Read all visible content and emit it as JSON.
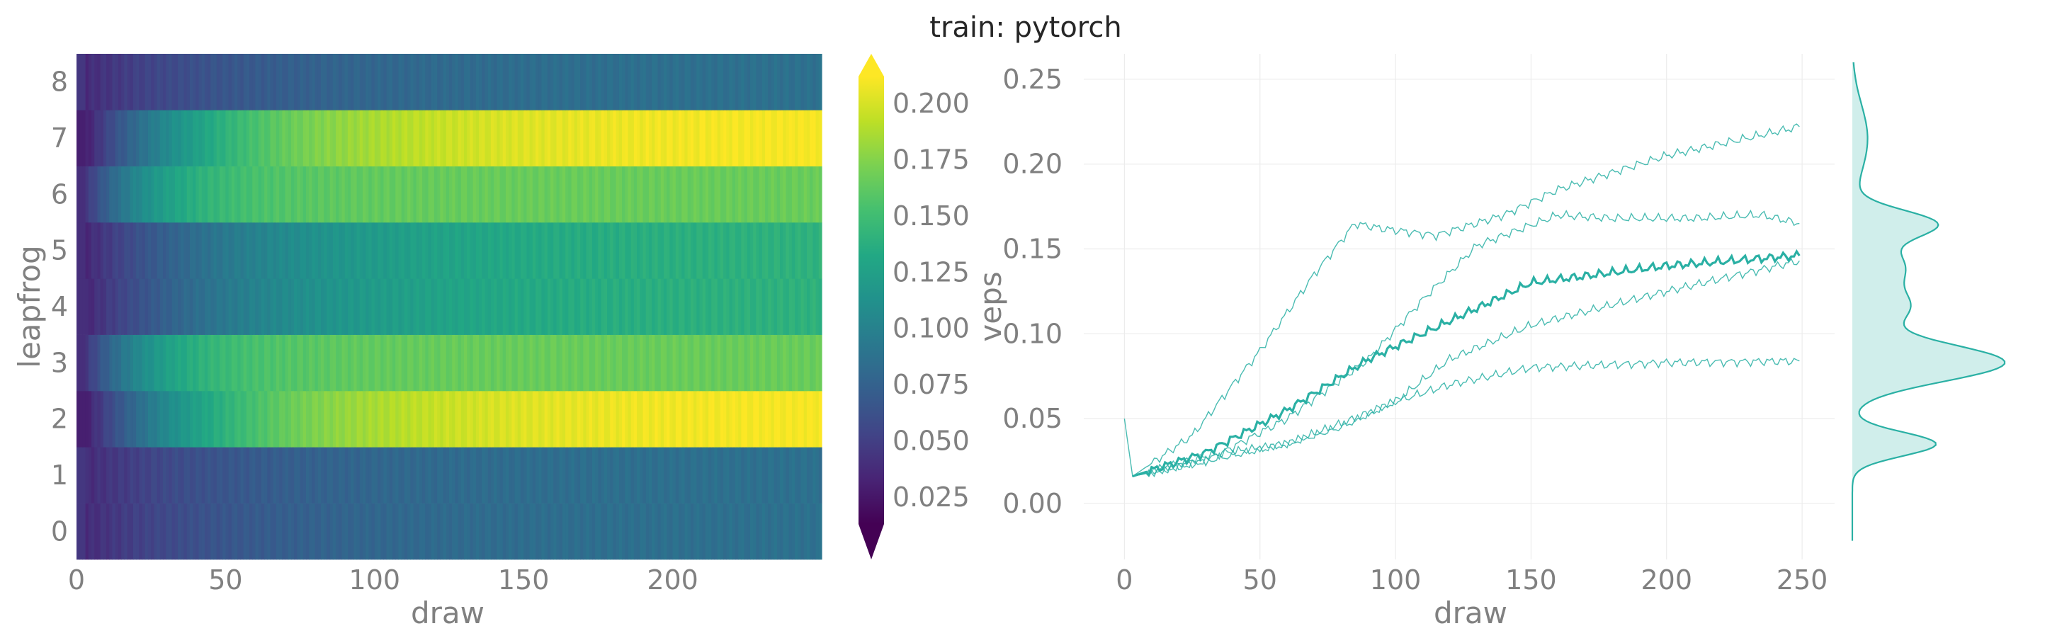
{
  "figure": {
    "title": "train: pytorch"
  },
  "chart_data": [
    {
      "type": "heatmap",
      "xlabel": "draw",
      "ylabel": "leapfrog",
      "colorbar_label": "veps",
      "colormap": "viridis",
      "xlim": [
        0,
        249
      ],
      "x_ticks": [
        "0",
        "50",
        "100",
        "150",
        "200"
      ],
      "y_ticks": [
        "0",
        "1",
        "2",
        "3",
        "4",
        "5",
        "6",
        "7",
        "8"
      ],
      "clim": [
        0.013,
        0.212
      ],
      "colorbar_ticks": [
        "0.025",
        "0.050",
        "0.075",
        "0.100",
        "0.125",
        "0.150",
        "0.175",
        "0.200"
      ],
      "rows": [
        {
          "leapfrog": 0,
          "start": 0.035,
          "plateau": 0.087,
          "tau": 55
        },
        {
          "leapfrog": 1,
          "start": 0.035,
          "plateau": 0.087,
          "tau": 55
        },
        {
          "leapfrog": 2,
          "start": 0.02,
          "plateau": 0.212,
          "tau": 50
        },
        {
          "leapfrog": 3,
          "start": 0.03,
          "plateau": 0.166,
          "tau": 25
        },
        {
          "leapfrog": 4,
          "start": 0.03,
          "plateau": 0.142,
          "tau": 60
        },
        {
          "leapfrog": 5,
          "start": 0.03,
          "plateau": 0.142,
          "tau": 60
        },
        {
          "leapfrog": 6,
          "start": 0.03,
          "plateau": 0.166,
          "tau": 25
        },
        {
          "leapfrog": 7,
          "start": 0.02,
          "plateau": 0.212,
          "tau": 50
        },
        {
          "leapfrog": 8,
          "start": 0.035,
          "plateau": 0.087,
          "tau": 55
        }
      ]
    },
    {
      "type": "line",
      "xlabel": "draw",
      "ylabel": "",
      "xlim": [
        -15,
        262
      ],
      "ylim": [
        -0.033,
        0.265
      ],
      "x_ticks": [
        "0",
        "50",
        "100",
        "150",
        "200",
        "250"
      ],
      "y_ticks": [
        "0.00",
        "0.05",
        "0.10",
        "0.15",
        "0.20",
        "0.25"
      ],
      "grid": true,
      "color": "#2ab0a4",
      "series": [
        {
          "points": [
            [
              0,
              0.05
            ],
            [
              3,
              0.016
            ],
            [
              25,
              0.04
            ],
            [
              50,
              0.09
            ],
            [
              70,
              0.135
            ],
            [
              85,
              0.165
            ],
            [
              95,
              0.162
            ],
            [
              115,
              0.158
            ],
            [
              140,
              0.17
            ],
            [
              160,
              0.185
            ],
            [
              200,
              0.205
            ],
            [
              249,
              0.222
            ]
          ]
        },
        {
          "points": [
            [
              3,
              0.016
            ],
            [
              30,
              0.025
            ],
            [
              60,
              0.05
            ],
            [
              90,
              0.085
            ],
            [
              110,
              0.12
            ],
            [
              130,
              0.152
            ],
            [
              160,
              0.17
            ],
            [
              180,
              0.168
            ],
            [
              210,
              0.168
            ],
            [
              235,
              0.17
            ],
            [
              249,
              0.165
            ]
          ]
        },
        {
          "points": [
            [
              3,
              0.016
            ],
            [
              30,
              0.03
            ],
            [
              60,
              0.055
            ],
            [
              90,
              0.085
            ],
            [
              110,
              0.1
            ],
            [
              130,
              0.115
            ],
            [
              150,
              0.13
            ],
            [
              200,
              0.14
            ],
            [
              240,
              0.145
            ],
            [
              249,
              0.146
            ]
          ],
          "emphasis": true
        },
        {
          "points": [
            [
              3,
              0.016
            ],
            [
              30,
              0.028
            ],
            [
              60,
              0.035
            ],
            [
              80,
              0.045
            ],
            [
              100,
              0.06
            ],
            [
              120,
              0.085
            ],
            [
              150,
              0.105
            ],
            [
              200,
              0.125
            ],
            [
              249,
              0.143
            ]
          ]
        },
        {
          "points": [
            [
              3,
              0.016
            ],
            [
              30,
              0.025
            ],
            [
              60,
              0.035
            ],
            [
              85,
              0.05
            ],
            [
              100,
              0.06
            ],
            [
              120,
              0.07
            ],
            [
              150,
              0.08
            ],
            [
              200,
              0.083
            ],
            [
              249,
              0.084
            ]
          ]
        }
      ],
      "density": {
        "peaks": [
          {
            "veps": 0.083,
            "weight": 1.0,
            "sd": 0.011
          },
          {
            "veps": 0.035,
            "weight": 0.55,
            "sd": 0.007
          },
          {
            "veps": 0.165,
            "weight": 0.52,
            "sd": 0.008
          },
          {
            "veps": 0.14,
            "weight": 0.33,
            "sd": 0.012
          },
          {
            "veps": 0.115,
            "weight": 0.33,
            "sd": 0.01
          },
          {
            "veps": 0.215,
            "weight": 0.1,
            "sd": 0.02
          }
        ]
      }
    }
  ]
}
